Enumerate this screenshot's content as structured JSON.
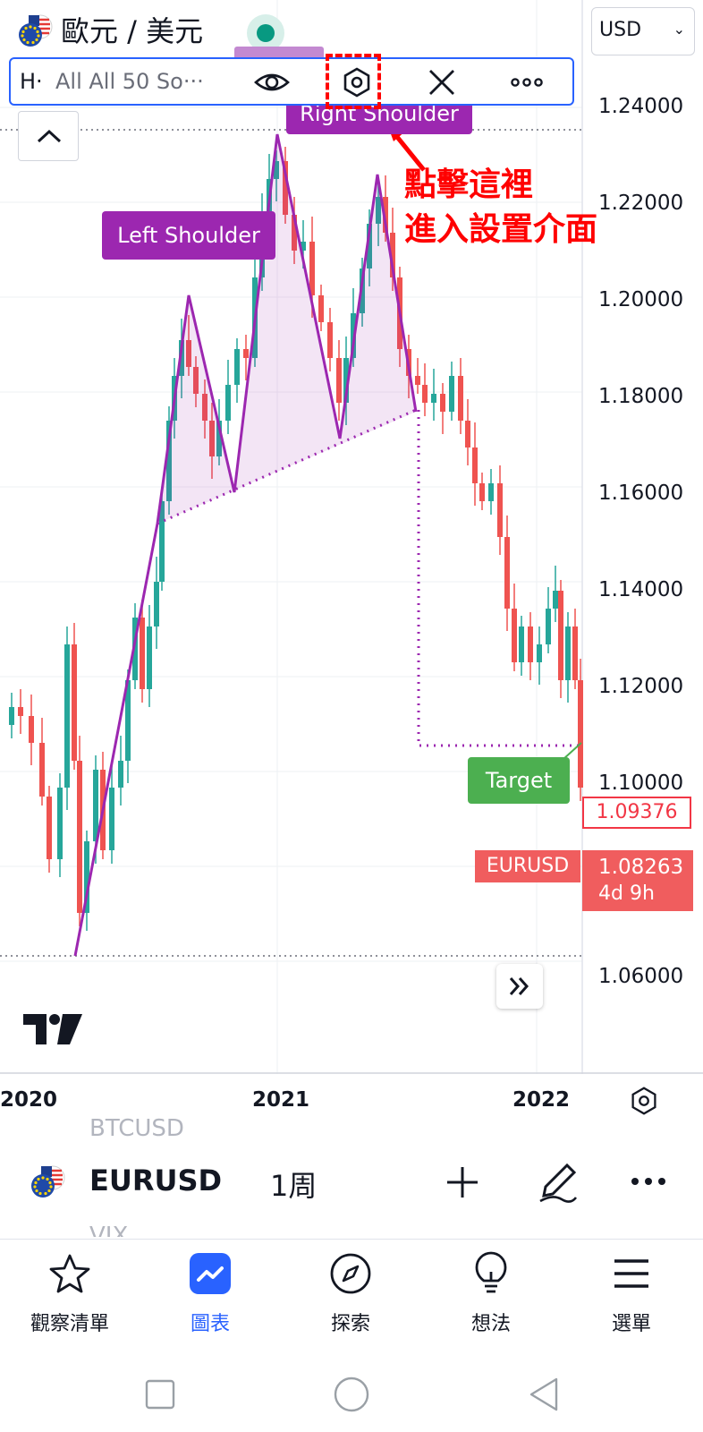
{
  "header": {
    "title": "歐元 / 美元",
    "currency": "USD",
    "currency_chevron": "⌄"
  },
  "toolbar": {
    "name": "H·",
    "description": "All All 50 So···",
    "icons": [
      "eye-icon",
      "settings-icon",
      "close-icon",
      "more-icon"
    ]
  },
  "chart": {
    "price_ticks": [
      "1.24000",
      "1.22000",
      "1.20000",
      "1.18000",
      "1.16000",
      "1.14000",
      "1.12000",
      "1.10000",
      "1.06000"
    ],
    "last_price_label": "1.09376",
    "symbol_tag": "EURUSD",
    "current_price": "1.08263",
    "countdown": "4d 9h",
    "time_labels": [
      "2020",
      "2021",
      "2022"
    ],
    "labels": {
      "left_shoulder": "Left Shoulder",
      "right_shoulder": "Right Shoulder",
      "target": "Target"
    },
    "colors": {
      "up": "#26a69a",
      "down": "#ef5350",
      "pattern": "#9c27b0",
      "target": "#4caf50",
      "annotation": "#ff0000"
    }
  },
  "annotation": {
    "line1": "點擊這裡",
    "line2": "進入設置介面"
  },
  "symbol_bar": {
    "ghost_prev": "BTCUSD",
    "symbol": "EURUSD",
    "interval": "1周",
    "ghost_next": "VIX"
  },
  "bottom_nav": [
    {
      "label": "觀察清單",
      "icon": "star-icon"
    },
    {
      "label": "圖表",
      "icon": "chart-icon"
    },
    {
      "label": "探索",
      "icon": "compass-icon"
    },
    {
      "label": "想法",
      "icon": "lightbulb-icon"
    },
    {
      "label": "選單",
      "icon": "menu-icon"
    }
  ]
}
